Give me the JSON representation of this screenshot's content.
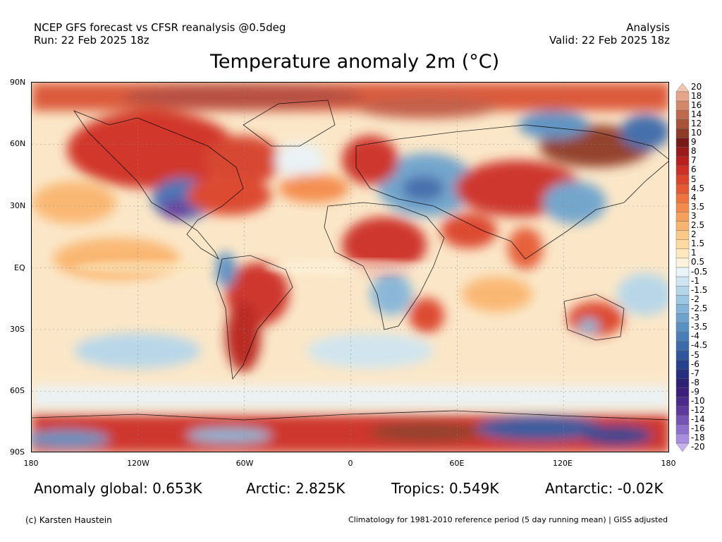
{
  "header": {
    "line1": "NCEP GFS forecast vs CFSR reanalysis @0.5deg",
    "line2": "Run: 22 Feb 2025 18z",
    "right1": "Analysis",
    "right2": "Valid: 22 Feb 2025 18z"
  },
  "title": "Temperature anomaly 2m (°C)",
  "axes": {
    "lat_labels": [
      "90N",
      "60N",
      "30N",
      "EQ",
      "30S",
      "60S",
      "90S"
    ],
    "lon_labels": [
      "180",
      "120W",
      "60W",
      "0",
      "60E",
      "120E",
      "180"
    ]
  },
  "colorbar": {
    "labels": [
      "20",
      "18",
      "16",
      "14",
      "12",
      "10",
      "9",
      "8",
      "7",
      "6",
      "5",
      "4.5",
      "4",
      "3.5",
      "3",
      "2.5",
      "2",
      "1.5",
      "1",
      "0.5",
      "-0.5",
      "-1",
      "-1.5",
      "-2",
      "-2.5",
      "-3",
      "-3.5",
      "-4",
      "-4.5",
      "-5",
      "-6",
      "-7",
      "-8",
      "-9",
      "-10",
      "-12",
      "-14",
      "-16",
      "-18",
      "-20"
    ],
    "colors": [
      "#f2c6b0",
      "#e6a58a",
      "#d4886a",
      "#bf6a4e",
      "#a85238",
      "#8f3a27",
      "#7a1a18",
      "#9c1a1c",
      "#b8201f",
      "#cc2f25",
      "#db432c",
      "#e55a35",
      "#ee7340",
      "#f48a4c",
      "#f7a05c",
      "#f9b56f",
      "#fbc987",
      "#fcd9a0",
      "#fde7be",
      "#fdf3dc",
      "#eaf3f8",
      "#cfe5f1",
      "#b5d6ea",
      "#9cc6e1",
      "#84b5d8",
      "#6da3cd",
      "#5a91c3",
      "#4a7eb8",
      "#3d6aab",
      "#30559c",
      "#27408d",
      "#262e7f",
      "#2d2273",
      "#3b1f7a",
      "#4a2a8a",
      "#5e3a9e",
      "#7654b5",
      "#8f70cc",
      "#a98ee0",
      "#c6b0ef"
    ]
  },
  "stats": {
    "global": "Anomaly global: 0.653K",
    "arctic": "Arctic: 2.825K",
    "tropics": "Tropics: 0.549K",
    "antarctic": "Antarctic: -0.02K"
  },
  "footer": {
    "left": "(c) Karsten Haustein",
    "right": "Climatology for 1981-2010 reference period (5 day running mean) | GISS adjusted"
  }
}
